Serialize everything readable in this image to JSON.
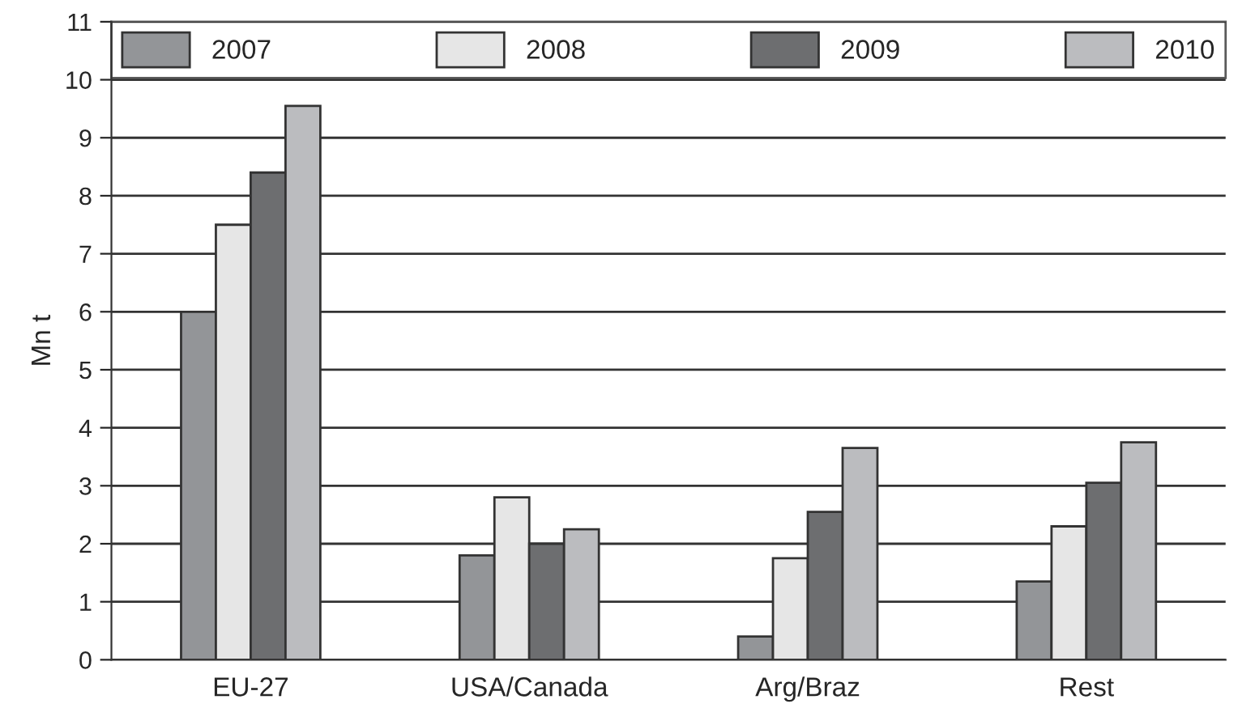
{
  "chart_data": {
    "type": "bar",
    "ylabel": "Mn t",
    "categories": [
      "EU-27",
      "USA/Canada",
      "Arg/Braz",
      "Rest"
    ],
    "series": [
      {
        "name": "2007",
        "color": "#939598",
        "values": [
          6.0,
          1.8,
          0.4,
          1.35
        ]
      },
      {
        "name": "2008",
        "color": "#e6e6e6",
        "values": [
          7.5,
          2.8,
          1.75,
          2.3
        ]
      },
      {
        "name": "2009",
        "color": "#6d6e70",
        "values": [
          8.4,
          2.0,
          2.55,
          3.05
        ]
      },
      {
        "name": "2010",
        "color": "#bbbcbf",
        "values": [
          9.55,
          2.25,
          3.65,
          3.75
        ]
      }
    ],
    "ylim": [
      0,
      11
    ],
    "yticks": [
      0,
      1,
      2,
      3,
      4,
      5,
      6,
      7,
      8,
      9,
      10,
      11
    ],
    "grid": "y",
    "legend": "top"
  }
}
